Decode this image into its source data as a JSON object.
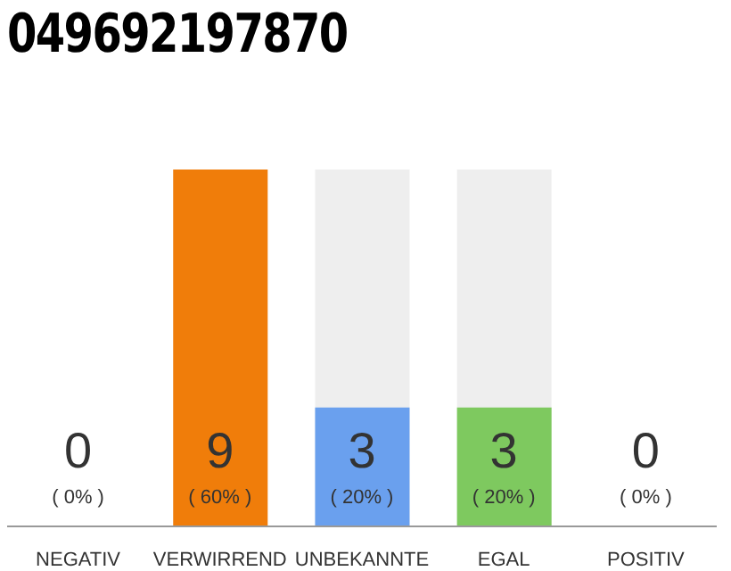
{
  "chart_data": {
    "type": "bar",
    "title": "049692197870",
    "categories": [
      "NEGATIV",
      "VERWIRREND",
      "UNBEKANNTE",
      "EGAL",
      "POSITIV"
    ],
    "values": [
      0,
      9,
      3,
      3,
      0
    ],
    "colors": [
      "#eeeeee",
      "#f07d0a",
      "#6aa0ee",
      "#7ec95f",
      "#eeeeee"
    ],
    "data_labels": true,
    "annotations": [
      "( 0% )",
      "( 60% )",
      "( 20% )",
      "( 20% )",
      "( 0% )"
    ]
  }
}
